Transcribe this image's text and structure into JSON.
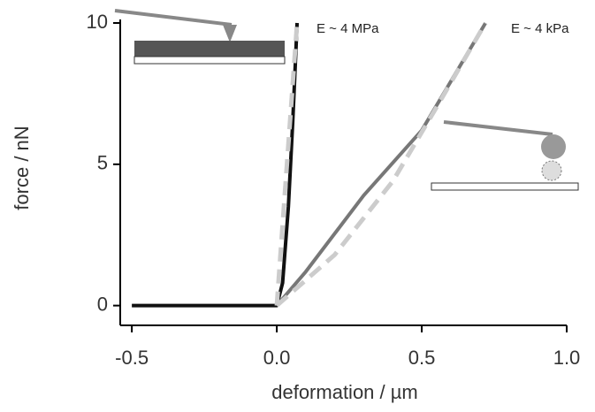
{
  "chart_data": {
    "type": "line",
    "xlabel": "deformation  / µm",
    "ylabel": "force  / nN",
    "annotations": [
      "E ~ 4 MPa",
      "E ~ 4 kPa"
    ],
    "xlim": [
      -0.54,
      1.0
    ],
    "ylim": [
      -0.7,
      10.0
    ],
    "xticks": [
      -0.5,
      {
        "value": 0,
        "label": "0.0"
      },
      0.5,
      {
        "value": 1,
        "label": "1.0"
      }
    ],
    "yticks": [
      0,
      5,
      10
    ],
    "series": [
      {
        "color": "#111111",
        "dash": false,
        "x": [
          -0.5,
          -0.25,
          0.0,
          0.02,
          0.04,
          0.055,
          0.065,
          0.07
        ],
        "values": [
          0,
          0,
          0,
          0.8,
          3.5,
          6.5,
          8.8,
          10
        ]
      },
      {
        "color": "#777777",
        "dash": false,
        "x": [
          0.0,
          0.1,
          0.3,
          0.5,
          0.72
        ],
        "values": [
          0,
          1.2,
          3.9,
          6.2,
          10
        ]
      },
      {
        "color": "#cccccc",
        "dash": true,
        "x": [
          0.0,
          0.07
        ],
        "values": [
          0,
          10
        ]
      },
      {
        "color": "#cccccc",
        "dash": true,
        "x": [
          0.0,
          0.2,
          0.4,
          0.55,
          0.72
        ],
        "values": [
          0,
          1.8,
          4.4,
          7.0,
          10
        ]
      }
    ]
  }
}
